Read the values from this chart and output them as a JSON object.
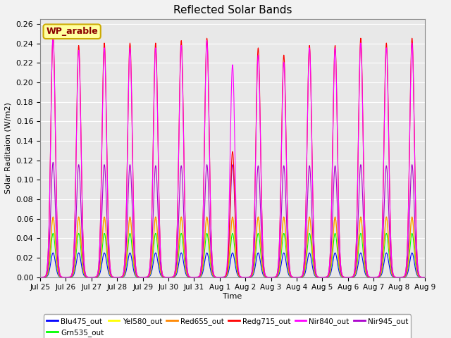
{
  "title": "Reflected Solar Bands",
  "xlabel": "Time",
  "ylabel": "Solar Raditaion (W/m2)",
  "ylim": [
    0.0,
    0.265
  ],
  "yticks": [
    0.0,
    0.02,
    0.04,
    0.06,
    0.08,
    0.1,
    0.12,
    0.14,
    0.16,
    0.18,
    0.2,
    0.22,
    0.24,
    0.26
  ],
  "xtick_labels": [
    "Jul 25",
    "Jul 26",
    "Jul 27",
    "Jul 28",
    "Jul 29",
    "Jul 30",
    "Jul 31",
    "Aug 1",
    "Aug 2",
    "Aug 3",
    "Aug 4",
    "Aug 5",
    "Aug 6",
    "Aug 7",
    "Aug 8",
    "Aug 9"
  ],
  "wp_label": "WP_arable",
  "colors": {
    "Blu475_out": "#0000ff",
    "Grn535_out": "#00ff00",
    "Yel580_out": "#ffff00",
    "Red655_out": "#ff8800",
    "Redg715_out": "#ff0000",
    "Nir840_out": "#ff00ff",
    "Nir945_out": "#aa00cc"
  },
  "peaks": {
    "Blu475_out": 0.025,
    "Grn535_out": 0.045,
    "Yel580_out": 0.06,
    "Red655_out": 0.062,
    "Redg715_out": 0.248,
    "Nir840_out": 0.248,
    "Nir945_out": 0.118
  },
  "sigma": 0.09,
  "n_days": 15,
  "plot_order": [
    "Blu475_out",
    "Grn535_out",
    "Yel580_out",
    "Red655_out",
    "Nir945_out",
    "Redg715_out",
    "Nir840_out"
  ],
  "legend_order": [
    "Blu475_out",
    "Grn535_out",
    "Yel580_out",
    "Red655_out",
    "Redg715_out",
    "Nir840_out",
    "Nir945_out"
  ],
  "background_color": "#e8e8e8",
  "fig_background": "#f2f2f2",
  "grid_color": "#ffffff"
}
